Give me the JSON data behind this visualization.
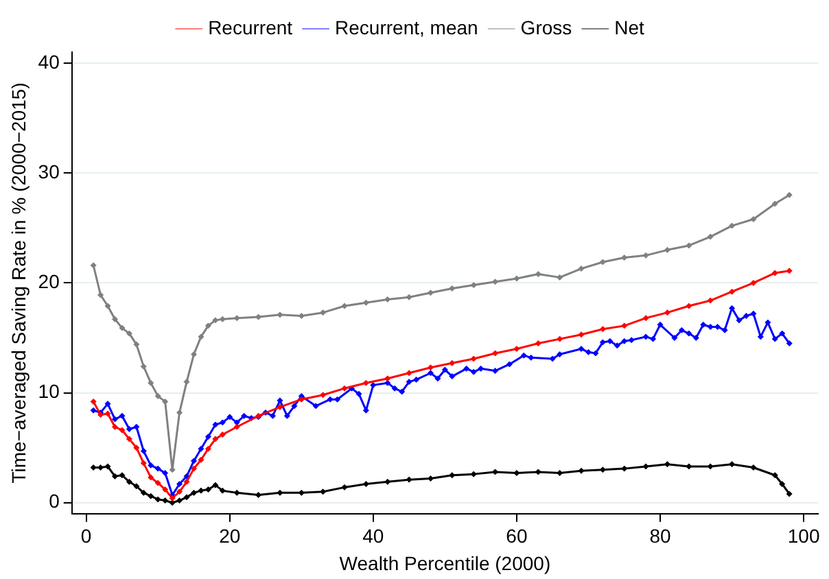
{
  "chart_data": {
    "type": "line",
    "xlabel": "Wealth Percentile (2000)",
    "ylabel": "Time−averaged Saving Rate in % (2000−2015)",
    "xlim": [
      -2,
      102
    ],
    "xticks": [
      0,
      20,
      40,
      60,
      80,
      100
    ],
    "ylim": [
      -1,
      41
    ],
    "yticks": [
      0,
      10,
      20,
      30,
      40
    ],
    "grid": "y",
    "legend": "top",
    "marker": "diamond",
    "line_style": "solid",
    "series": [
      {
        "name": "Recurrent",
        "color": "#ff0000",
        "x": [
          1,
          2,
          3,
          4,
          5,
          6,
          7,
          8,
          9,
          10,
          11,
          12,
          13,
          14,
          15,
          16,
          17,
          18,
          19,
          21,
          24,
          27,
          30,
          33,
          36,
          39,
          42,
          45,
          48,
          51,
          54,
          57,
          60,
          63,
          66,
          69,
          72,
          75,
          78,
          81,
          84,
          87,
          90,
          93,
          96,
          98
        ],
        "values": [
          9.2,
          8.0,
          8.1,
          6.9,
          6.6,
          5.8,
          5.0,
          3.6,
          2.3,
          1.8,
          1.2,
          0.4,
          1.0,
          1.9,
          3.1,
          3.9,
          4.9,
          5.8,
          6.2,
          6.9,
          7.9,
          8.7,
          9.4,
          9.8,
          10.4,
          10.9,
          11.3,
          11.8,
          12.3,
          12.7,
          13.1,
          13.6,
          14.0,
          14.5,
          14.9,
          15.3,
          15.8,
          16.1,
          16.8,
          17.3,
          17.9,
          18.4,
          19.2,
          20.0,
          20.9,
          21.1
        ]
      },
      {
        "name": "Recurrent, mean",
        "color": "#0000ff",
        "x": [
          1,
          2,
          3,
          4,
          5,
          6,
          7,
          8,
          9,
          10,
          11,
          12,
          13,
          14,
          15,
          16,
          17,
          18,
          19,
          20,
          21,
          22,
          23,
          24,
          25,
          26,
          27,
          28,
          29,
          30,
          32,
          34,
          35,
          37,
          38,
          39,
          40,
          42,
          43,
          44,
          45,
          46,
          48,
          49,
          50,
          51,
          53,
          54,
          55,
          57,
          59,
          61,
          62,
          65,
          66,
          69,
          70,
          71,
          72,
          73,
          74,
          75,
          76,
          78,
          79,
          80,
          82,
          83,
          84,
          85,
          86,
          87,
          88,
          89,
          90,
          91,
          92,
          93,
          94,
          95,
          96,
          97,
          98
        ],
        "values": [
          8.4,
          8.2,
          9.0,
          7.6,
          7.9,
          6.7,
          6.9,
          4.7,
          3.4,
          3.1,
          2.7,
          0.7,
          1.7,
          2.4,
          3.8,
          4.9,
          6.0,
          7.1,
          7.3,
          7.8,
          7.3,
          7.9,
          7.7,
          7.8,
          8.2,
          7.9,
          9.3,
          7.9,
          8.8,
          9.7,
          8.8,
          9.4,
          9.4,
          10.4,
          9.9,
          8.4,
          10.7,
          10.9,
          10.4,
          10.1,
          11.0,
          11.2,
          11.8,
          11.3,
          12.1,
          11.5,
          12.2,
          11.9,
          12.2,
          12.0,
          12.6,
          13.4,
          13.2,
          13.1,
          13.5,
          14.0,
          13.7,
          13.6,
          14.6,
          14.7,
          14.3,
          14.7,
          14.8,
          15.1,
          14.9,
          16.2,
          15.0,
          15.7,
          15.4,
          15.0,
          16.2,
          16.0,
          16.0,
          15.7,
          17.7,
          16.6,
          17.0,
          17.2,
          15.1,
          16.4,
          14.9,
          15.4,
          14.5
        ]
      },
      {
        "name": "Gross",
        "color": "#808080",
        "x": [
          1,
          2,
          3,
          4,
          5,
          6,
          7,
          8,
          9,
          10,
          11,
          12,
          13,
          14,
          15,
          16,
          17,
          18,
          19,
          21,
          24,
          27,
          30,
          33,
          36,
          39,
          42,
          45,
          48,
          51,
          54,
          57,
          60,
          63,
          66,
          69,
          72,
          75,
          78,
          81,
          84,
          87,
          90,
          93,
          96,
          98
        ],
        "values": [
          21.6,
          18.9,
          17.9,
          16.7,
          15.9,
          15.4,
          14.4,
          12.4,
          10.9,
          9.7,
          9.2,
          3.0,
          8.2,
          11.0,
          13.5,
          15.1,
          16.1,
          16.6,
          16.7,
          16.8,
          16.9,
          17.1,
          17.0,
          17.3,
          17.9,
          18.2,
          18.5,
          18.7,
          19.1,
          19.5,
          19.8,
          20.1,
          20.4,
          20.8,
          20.5,
          21.3,
          21.9,
          22.3,
          22.5,
          23.0,
          23.4,
          24.2,
          25.2,
          25.8,
          27.2,
          28.0
        ]
      },
      {
        "name": "Net",
        "color": "#000000",
        "x": [
          1,
          2,
          3,
          4,
          5,
          6,
          7,
          8,
          9,
          10,
          11,
          12,
          13,
          14,
          15,
          16,
          17,
          18,
          19,
          21,
          24,
          27,
          30,
          33,
          36,
          39,
          42,
          45,
          48,
          51,
          54,
          57,
          60,
          63,
          66,
          69,
          72,
          75,
          78,
          81,
          84,
          87,
          90,
          93,
          96,
          97,
          98
        ],
        "values": [
          3.2,
          3.2,
          3.3,
          2.4,
          2.5,
          1.9,
          1.5,
          0.9,
          0.6,
          0.3,
          0.2,
          0.0,
          0.2,
          0.5,
          0.9,
          1.1,
          1.2,
          1.6,
          1.1,
          0.9,
          0.7,
          0.9,
          0.9,
          1.0,
          1.4,
          1.7,
          1.9,
          2.1,
          2.2,
          2.5,
          2.6,
          2.8,
          2.7,
          2.8,
          2.7,
          2.9,
          3.0,
          3.1,
          3.3,
          3.5,
          3.3,
          3.3,
          3.5,
          3.2,
          2.5,
          1.7,
          0.8
        ]
      }
    ]
  }
}
